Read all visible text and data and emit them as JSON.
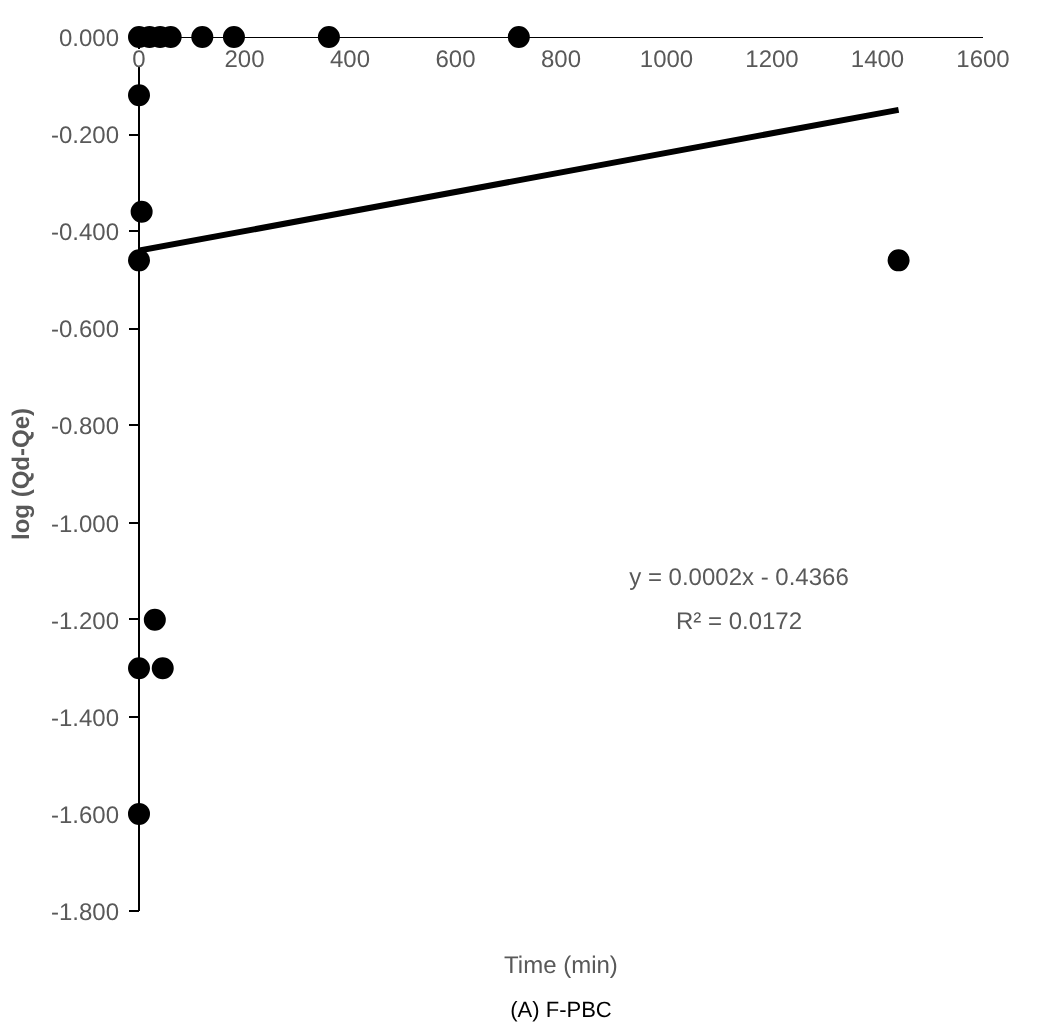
{
  "chart_data": {
    "type": "scatter",
    "xlabel": "Time (min)",
    "ylabel": "log (Qd-Qe)",
    "series": [
      {
        "color": "#000000",
        "marker": "circle",
        "x": [
          0,
          20,
          40,
          60,
          120,
          180,
          360,
          720,
          0,
          5,
          0,
          1440,
          30,
          0,
          45,
          0
        ],
        "values": [
          0,
          0,
          0,
          0,
          0,
          0,
          0,
          0,
          -0.12,
          -0.36,
          -0.46,
          -0.46,
          -1.2,
          -1.3,
          -1.3,
          -1.6
        ]
      },
      {
        "type": "line",
        "color": "#000000",
        "x": [
          0,
          1440
        ],
        "values": [
          -0.44,
          -0.15
        ]
      }
    ],
    "xlim": [
      0,
      1600
    ],
    "xticks": [
      0,
      200,
      400,
      600,
      800,
      1000,
      1200,
      1400,
      1600
    ],
    "ylim": [
      -1.8,
      0
    ],
    "yticks": [
      {
        "value": 0,
        "label": "0.000"
      },
      {
        "value": -0.2,
        "label": "-0.200"
      },
      {
        "value": -0.4,
        "label": "-0.400"
      },
      {
        "value": -0.6,
        "label": "-0.600"
      },
      {
        "value": -0.8,
        "label": "-0.800"
      },
      {
        "value": -1.0,
        "label": "-1.000"
      },
      {
        "value": -1.2,
        "label": "-1.200"
      },
      {
        "value": -1.4,
        "label": "-1.400"
      },
      {
        "value": -1.6,
        "label": "-1.600"
      },
      {
        "value": -1.8,
        "label": "-1.800"
      }
    ],
    "grid": false,
    "annotations": [
      "y = 0.0002x - 0.4366",
      "R² = 0.0172",
      "(A) F-PBC"
    ]
  }
}
